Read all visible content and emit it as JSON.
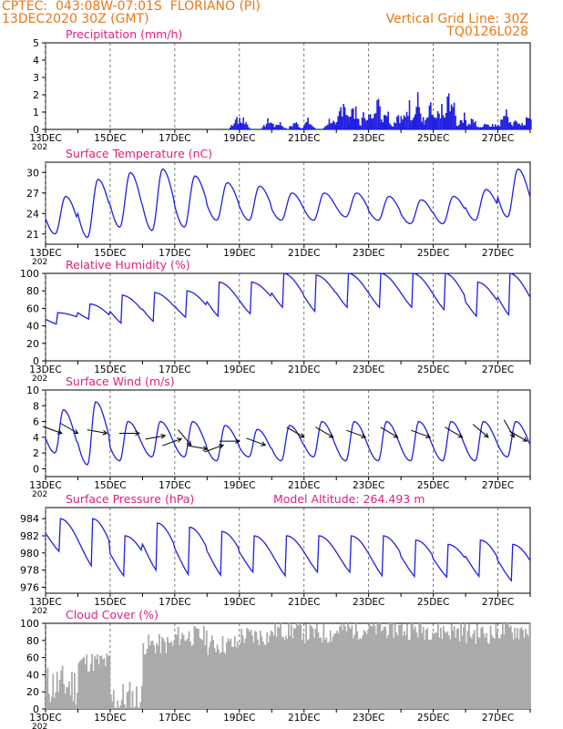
{
  "header": {
    "line1": "CPTEC:  043:08W-07:01S  FLORIANO (PI)",
    "line2": "13DEC2020 30Z (GMT)",
    "grid_note": "Vertical Grid Line: 30Z",
    "code": "TQ0126L028"
  },
  "colors": {
    "header": "#e87818",
    "title": "#e0207a",
    "line": "#2020e0",
    "axis": "#000000",
    "cloud": "#aaaaaa",
    "arrow": "#000000"
  },
  "x_axis": {
    "labels": [
      "13DEC",
      "15DEC",
      "17DEC",
      "19DEC",
      "21DEC",
      "23DEC",
      "25DEC",
      "27DEC"
    ],
    "year_label": "202"
  },
  "chart_data": [
    {
      "type": "bar",
      "title": "Precipitation (mm/h)",
      "ylim": [
        0,
        5
      ],
      "yticks": [
        0,
        1,
        2,
        3,
        4,
        5
      ],
      "bursts": [
        {
          "day": 5.9,
          "max": 1.1
        },
        {
          "day": 6.1,
          "max": 0.9
        },
        {
          "day": 6.9,
          "max": 0.8
        },
        {
          "day": 7.2,
          "max": 0.6
        },
        {
          "day": 7.7,
          "max": 0.6
        },
        {
          "day": 8.1,
          "max": 0.7
        },
        {
          "day": 8.8,
          "max": 0.9
        },
        {
          "day": 9.2,
          "max": 2.8
        },
        {
          "day": 9.5,
          "max": 2.0
        },
        {
          "day": 9.9,
          "max": 1.6
        },
        {
          "day": 10.2,
          "max": 3.0
        },
        {
          "day": 10.5,
          "max": 1.8
        },
        {
          "day": 10.9,
          "max": 1.4
        },
        {
          "day": 11.2,
          "max": 2.2
        },
        {
          "day": 11.5,
          "max": 2.3
        },
        {
          "day": 11.9,
          "max": 1.7
        },
        {
          "day": 12.2,
          "max": 1.8
        },
        {
          "day": 12.5,
          "max": 3.1
        },
        {
          "day": 12.9,
          "max": 1.2
        },
        {
          "day": 13.2,
          "max": 0.8
        },
        {
          "day": 13.6,
          "max": 0.6
        },
        {
          "day": 13.9,
          "max": 0.5
        },
        {
          "day": 14.2,
          "max": 1.7
        },
        {
          "day": 14.6,
          "max": 0.9
        },
        {
          "day": 14.9,
          "max": 0.9
        },
        {
          "day": 15.0,
          "max": 0.8
        }
      ]
    },
    {
      "type": "line",
      "title": "Surface Temperature (nC)",
      "ylim": [
        19.5,
        31.5
      ],
      "yticks": [
        21,
        24,
        27,
        30
      ],
      "maxima": [
        26.5,
        29.0,
        30.0,
        30.5,
        29.5,
        28.5,
        28.0,
        27.0,
        27.0,
        27.0,
        26.5,
        26.0,
        26.5,
        27.5,
        30.5
      ],
      "minima": [
        21.0,
        20.5,
        22.0,
        21.5,
        22.0,
        23.0,
        23.0,
        23.0,
        23.0,
        23.5,
        23.0,
        22.5,
        22.5,
        23.0,
        23.5
      ]
    },
    {
      "type": "line",
      "title": "Relative Humidity (%)",
      "ylim": [
        0,
        100
      ],
      "yticks": [
        0,
        20,
        40,
        60,
        80,
        100
      ],
      "maxima": [
        55,
        65,
        75,
        78,
        80,
        90,
        90,
        100,
        98,
        100,
        100,
        100,
        100,
        90,
        100
      ],
      "minima": [
        40,
        45,
        38,
        40,
        45,
        45,
        48,
        55,
        50,
        55,
        55,
        55,
        52,
        45,
        45
      ]
    },
    {
      "type": "line",
      "title": "Surface Wind (m/s)",
      "ylim": [
        -1,
        10
      ],
      "yticks": [
        0,
        2,
        4,
        6,
        8,
        10
      ],
      "maxima": [
        7.5,
        8.5,
        6.0,
        6.0,
        6.0,
        5.5,
        5.0,
        5.5,
        6.0,
        6.0,
        6.0,
        6.0,
        6.0,
        6.0,
        6.0
      ],
      "minima": [
        2.0,
        0.5,
        1.0,
        1.5,
        1.5,
        1.0,
        1.5,
        1.0,
        1.5,
        1.0,
        1.0,
        1.0,
        1.0,
        1.0,
        1.5
      ],
      "wind_barbs": [
        {
          "day": 0.5,
          "speed": 4.5,
          "dir": 290
        },
        {
          "day": 1.0,
          "speed": 4.5,
          "dir": 300
        },
        {
          "day": 1.9,
          "speed": 4.5,
          "dir": 280
        },
        {
          "day": 2.9,
          "speed": 4.5,
          "dir": 270
        },
        {
          "day": 3.7,
          "speed": 4.2,
          "dir": 260
        },
        {
          "day": 4.2,
          "speed": 3.8,
          "dir": 250
        },
        {
          "day": 4.5,
          "speed": 3.0,
          "dir": 320
        },
        {
          "day": 5.0,
          "speed": 2.5,
          "dir": 280
        },
        {
          "day": 5.5,
          "speed": 3.0,
          "dir": 250
        },
        {
          "day": 6.0,
          "speed": 3.5,
          "dir": 270
        },
        {
          "day": 6.8,
          "speed": 3.0,
          "dir": 290
        },
        {
          "day": 8.0,
          "speed": 4.0,
          "dir": 300
        },
        {
          "day": 8.9,
          "speed": 4.0,
          "dir": 300
        },
        {
          "day": 9.9,
          "speed": 4.0,
          "dir": 290
        },
        {
          "day": 10.9,
          "speed": 4.0,
          "dir": 300
        },
        {
          "day": 11.9,
          "speed": 4.0,
          "dir": 290
        },
        {
          "day": 12.9,
          "speed": 4.0,
          "dir": 300
        },
        {
          "day": 13.7,
          "speed": 4.0,
          "dir": 310
        },
        {
          "day": 14.5,
          "speed": 4.0,
          "dir": 330
        },
        {
          "day": 14.9,
          "speed": 3.5,
          "dir": 300
        }
      ]
    },
    {
      "type": "line",
      "title": "Surface Pressure (hPa)",
      "altitude_note": "Model Altitude: 264.493 m",
      "ylim": [
        975.3,
        985.3
      ],
      "yticks": [
        976,
        978,
        980,
        982,
        984
      ],
      "maxima": [
        984.0,
        984.0,
        982.0,
        983.5,
        983.0,
        982.5,
        982.0,
        982.0,
        982.0,
        982.0,
        982.0,
        981.5,
        981.0,
        981.5,
        981.0
      ],
      "minima": [
        979.5,
        977.5,
        976.5,
        977.0,
        976.5,
        976.5,
        977.0,
        976.5,
        977.0,
        977.0,
        976.5,
        976.5,
        976.5,
        976.5,
        976.0
      ]
    },
    {
      "type": "bar",
      "title": "Cloud Cover (%)",
      "ylim": [
        0,
        100
      ],
      "yticks": [
        0,
        20,
        40,
        60,
        80,
        100
      ],
      "daily_mean": [
        28,
        55,
        10,
        75,
        85,
        75,
        85,
        92,
        88,
        93,
        94,
        93,
        91,
        88,
        92
      ]
    }
  ]
}
